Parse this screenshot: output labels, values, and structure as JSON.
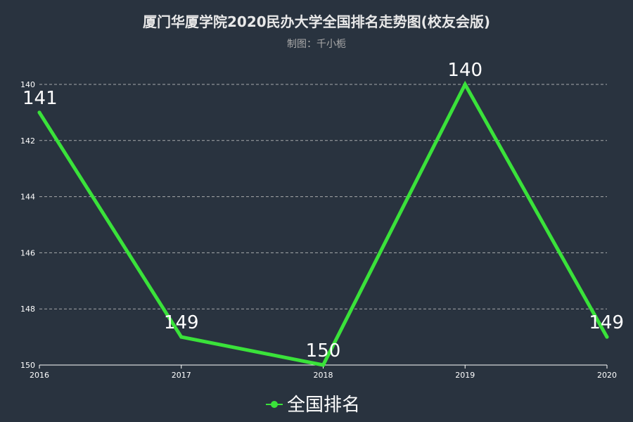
{
  "colors": {
    "background": "#29333f",
    "series": "#3ae23a",
    "grid": "#c8c8c8",
    "axis": "#ffffff",
    "title": "#e8e8e8",
    "subtitle": "#aaaaaa"
  },
  "chart_data": {
    "type": "line",
    "title": "厦门华厦学院2020民办大学全国排名走势图(校友会版)",
    "subtitle": "制图：千小栀",
    "xlabel": "",
    "ylabel": "",
    "categories": [
      "2016",
      "2017",
      "2018",
      "2019",
      "2020"
    ],
    "series": [
      {
        "name": "全国排名",
        "values": [
          141,
          149,
          150,
          140,
          149
        ]
      }
    ],
    "ylim": [
      140,
      150
    ],
    "y_inverted": true,
    "y_ticks": [
      140,
      142,
      144,
      146,
      148,
      150
    ],
    "grid": true,
    "legend": "bottom-center",
    "show_data_labels": true
  }
}
